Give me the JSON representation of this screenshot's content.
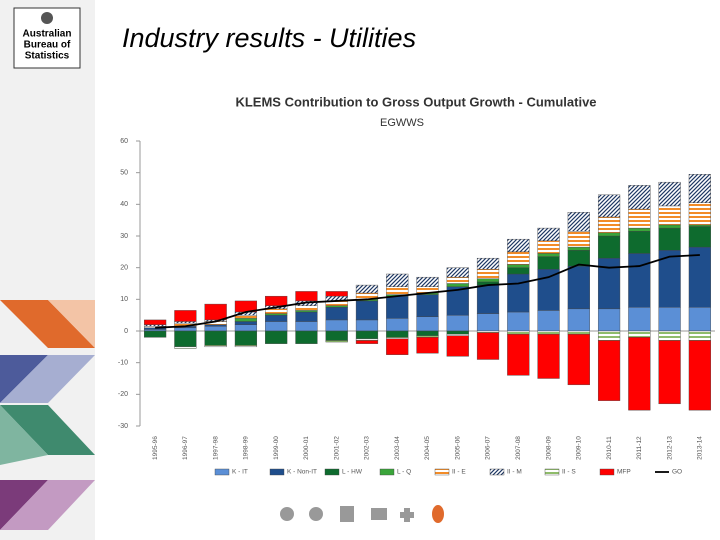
{
  "header": {
    "logo": [
      "Australian",
      "Bureau of",
      "Statistics"
    ],
    "title": "Industry results - Utilities"
  },
  "chart_data": {
    "type": "bar",
    "stacked": true,
    "title": "KLEMS Contribution to Gross Output Growth - Cumulative",
    "subtitle": "EGWWS",
    "categories": [
      "1995-96",
      "1996-97",
      "1997-98",
      "1998-99",
      "1999-00",
      "2000-01",
      "2001-02",
      "2002-03",
      "2003-04",
      "2004-05",
      "2005-06",
      "2006-07",
      "2007-08",
      "2008-09",
      "2009-10",
      "2010-11",
      "2011-12",
      "2012-13",
      "2013-14"
    ],
    "ylim": [
      -30,
      60
    ],
    "yticks": [
      -30,
      -20,
      -10,
      0,
      10,
      20,
      30,
      40,
      50,
      60
    ],
    "grid": false,
    "legend": "bottom",
    "series": [
      {
        "name": "K - IT",
        "color": "#5b8fd6",
        "values": [
          0.5,
          1,
          1.5,
          2,
          3,
          3,
          3.5,
          3.5,
          4,
          4.5,
          5,
          5.5,
          6,
          6.5,
          7,
          7,
          7.5,
          7.5,
          7.5
        ]
      },
      {
        "name": "K - Non-IT",
        "color": "#1f4e8c",
        "values": [
          0.5,
          0.5,
          0.5,
          1,
          2,
          3,
          4,
          6,
          7,
          7,
          9,
          9,
          12,
          13,
          13.5,
          16,
          17,
          18,
          19
        ]
      },
      {
        "name": "L - HW",
        "color": "#0e6b2e",
        "values": [
          -2,
          -5,
          -4.5,
          -4.5,
          -4,
          -4,
          -3,
          -2.5,
          -2,
          -1.5,
          -1,
          1,
          2,
          4,
          5,
          7,
          7,
          7,
          6.5
        ]
      },
      {
        "name": "L - Q",
        "color": "#3aa53a",
        "values": [
          0,
          0,
          0,
          1,
          0.5,
          0.5,
          0.5,
          0.5,
          0.5,
          0.5,
          1,
          1,
          1,
          1,
          1,
          1,
          1,
          1,
          0.5
        ]
      },
      {
        "name": "II - E",
        "color": "#f28c28",
        "pattern": "stripes",
        "values": [
          0.5,
          1,
          1,
          1,
          1.5,
          1.5,
          1.5,
          2,
          2.5,
          2,
          2,
          3,
          4,
          4,
          5,
          5,
          6,
          6,
          7
        ]
      },
      {
        "name": "II - M",
        "color": "#1f3864",
        "pattern": "hatch",
        "values": [
          0.5,
          0.5,
          0.5,
          1,
          1,
          1.5,
          1.5,
          2.5,
          4,
          3,
          3,
          3.5,
          4,
          4,
          6,
          7,
          7.5,
          7.5,
          9
        ]
      },
      {
        "name": "II - S",
        "color": "#8fbc6a",
        "pattern": "stripes",
        "values": [
          0,
          -0.5,
          -0.5,
          -0.5,
          0,
          0,
          -0.5,
          -0.5,
          -0.5,
          -0.5,
          -0.5,
          -0.5,
          -1,
          -1,
          -1,
          -3,
          -2,
          -3,
          -3
        ]
      },
      {
        "name": "MFP",
        "color": "#ff0000",
        "values": [
          1.5,
          3.5,
          5,
          3.5,
          3,
          3,
          1.5,
          -1,
          -5,
          -5,
          -6.5,
          -8.5,
          -13,
          -14,
          -16,
          -19,
          -23,
          -20,
          -22
        ]
      },
      {
        "name": "GO",
        "color": "#000000",
        "type": "line",
        "values": [
          1,
          1.5,
          3,
          6,
          7.5,
          9,
          9.5,
          10,
          11,
          12,
          13,
          14.5,
          15,
          17,
          21,
          20,
          20.5,
          23.5,
          24
        ]
      }
    ]
  }
}
